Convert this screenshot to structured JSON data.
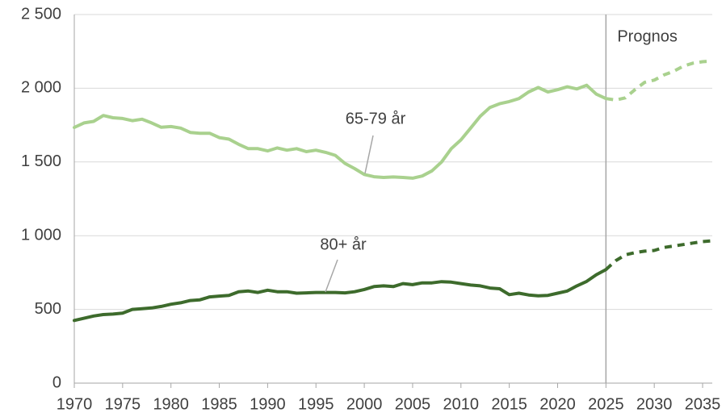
{
  "chart_data": {
    "type": "line",
    "x": [
      1970,
      1971,
      1972,
      1973,
      1974,
      1975,
      1976,
      1977,
      1978,
      1979,
      1980,
      1981,
      1982,
      1983,
      1984,
      1985,
      1986,
      1987,
      1988,
      1989,
      1990,
      1991,
      1992,
      1993,
      1994,
      1995,
      1996,
      1997,
      1998,
      1999,
      2000,
      2001,
      2002,
      2003,
      2004,
      2005,
      2006,
      2007,
      2008,
      2009,
      2010,
      2011,
      2012,
      2013,
      2014,
      2015,
      2016,
      2017,
      2018,
      2019,
      2020,
      2021,
      2022,
      2023,
      2024,
      2025,
      2026,
      2027,
      2028,
      2029,
      2030,
      2031,
      2032,
      2033,
      2034,
      2035,
      2036
    ],
    "series": [
      {
        "name": "65-79 år",
        "color": "#a9d18e",
        "values": [
          1734,
          1765,
          1775,
          1815,
          1800,
          1795,
          1780,
          1790,
          1765,
          1735,
          1740,
          1730,
          1700,
          1695,
          1695,
          1665,
          1655,
          1620,
          1590,
          1590,
          1575,
          1595,
          1580,
          1590,
          1570,
          1580,
          1565,
          1545,
          1490,
          1455,
          1415,
          1400,
          1395,
          1398,
          1395,
          1390,
          1405,
          1440,
          1500,
          1590,
          1650,
          1730,
          1810,
          1870,
          1895,
          1910,
          1930,
          1975,
          2005,
          1975,
          1990,
          2010,
          1995,
          2020,
          1960,
          1930,
          1920,
          1935,
          1990,
          2040,
          2055,
          2090,
          2115,
          2150,
          2170,
          2180,
          2185
        ]
      },
      {
        "name": "80+ år",
        "color": "#3d6b2c",
        "values": [
          425,
          440,
          455,
          465,
          468,
          475,
          500,
          505,
          510,
          520,
          535,
          545,
          560,
          565,
          585,
          590,
          595,
          620,
          625,
          615,
          630,
          620,
          620,
          610,
          612,
          615,
          615,
          615,
          612,
          620,
          635,
          655,
          660,
          655,
          675,
          668,
          680,
          680,
          688,
          685,
          675,
          665,
          660,
          645,
          640,
          600,
          610,
          598,
          592,
          595,
          610,
          625,
          660,
          690,
          735,
          770,
          830,
          870,
          885,
          895,
          900,
          920,
          930,
          940,
          950,
          960,
          965
        ]
      }
    ],
    "forecast_start": 2025,
    "forecast_label": "Prognos",
    "xlim": [
      1970,
      2036
    ],
    "xticks": [
      1970,
      1975,
      1980,
      1985,
      1990,
      1995,
      2000,
      2005,
      2010,
      2015,
      2020,
      2025,
      2030,
      2035
    ],
    "ylim": [
      0,
      2500
    ],
    "yticks": [
      0,
      500,
      {
        "value": 1000,
        "label": "1 000"
      },
      {
        "value": 1500,
        "label": "1 500"
      },
      {
        "value": 2000,
        "label": "2 000"
      },
      {
        "value": 2500,
        "label": "2 500"
      }
    ],
    "grid": true
  }
}
